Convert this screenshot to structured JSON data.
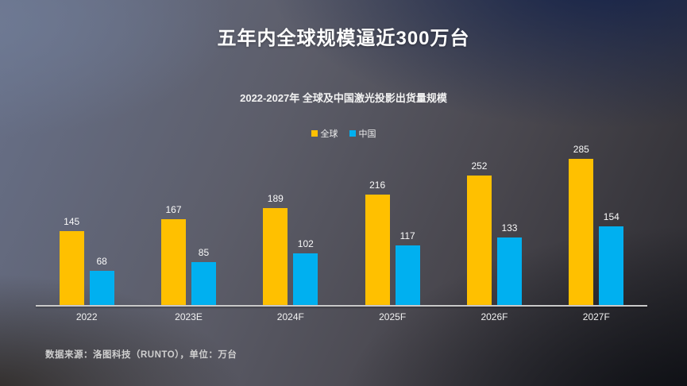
{
  "slide": {
    "title": "五年内全球规模逼近300万台",
    "source_note": "数据来源：洛图科技（RUNTO），单位：万台"
  },
  "chart_data": {
    "type": "bar",
    "title": "2022-2027年  全球及中国激光投影出货量规模",
    "categories": [
      "2022",
      "2023E",
      "2024F",
      "2025F",
      "2026F",
      "2027F"
    ],
    "series": [
      {
        "name": "全球",
        "color": "#FFC000",
        "values": [
          145,
          167,
          189,
          216,
          252,
          285
        ]
      },
      {
        "name": "中国",
        "color": "#00B0F0",
        "values": [
          68,
          85,
          102,
          117,
          133,
          154
        ]
      }
    ],
    "unit": "万台",
    "ylim": [
      0,
      300
    ],
    "grid": false,
    "value_labels": true,
    "legend_position": "top"
  }
}
